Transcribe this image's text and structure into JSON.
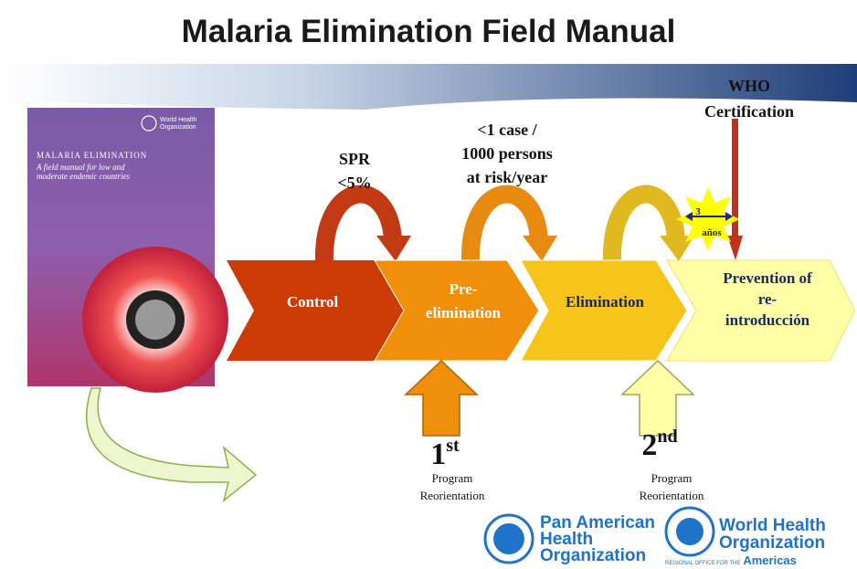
{
  "title": "Malaria Elimination Field Manual",
  "book": {
    "publisher": [
      "World Health",
      "Organization"
    ],
    "title": "MALARIA ELIMINATION",
    "subtitle": [
      "A field manual for low and",
      "moderate endemic countries"
    ]
  },
  "phases": [
    {
      "lines": [
        "Control"
      ]
    },
    {
      "lines": [
        "Pre-",
        "elimination"
      ]
    },
    {
      "lines": [
        "Elimination"
      ]
    },
    {
      "lines": [
        "Prevention of",
        "re-",
        "introducción"
      ]
    }
  ],
  "thresholds": [
    {
      "lines": [
        "SPR",
        "<5%"
      ]
    },
    {
      "lines": [
        "<1 case /",
        "1000 persons",
        "at risk/year"
      ]
    }
  ],
  "certification": [
    "WHO",
    "Certification"
  ],
  "interval": [
    "3",
    "años"
  ],
  "reorientations": [
    {
      "ordinal": "1",
      "suffix": "st",
      "lines": [
        "Program",
        "Reorientation"
      ]
    },
    {
      "ordinal": "2",
      "suffix": "nd",
      "lines": [
        "Program",
        "Reorientation"
      ]
    }
  ],
  "logos": {
    "paho": [
      "Pan American",
      "Health",
      "Organization"
    ],
    "who": [
      "World Health",
      "Organization"
    ],
    "who_region": [
      "REGIONAL OFFICE FOR THE",
      "Americas"
    ]
  }
}
